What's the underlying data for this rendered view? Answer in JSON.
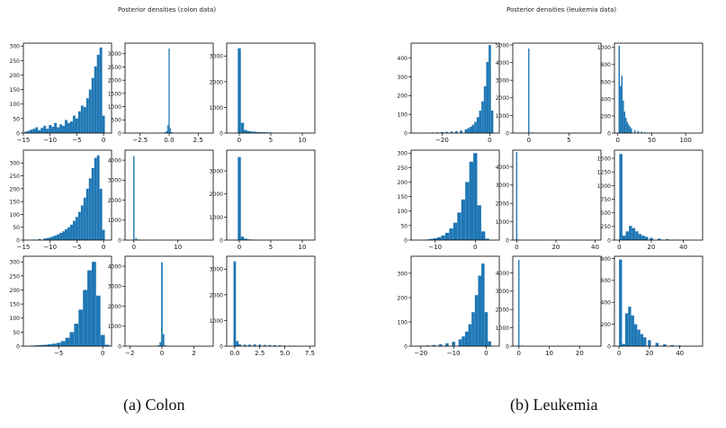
{
  "figures": [
    {
      "title": "Posterior densities (colon data)",
      "caption": "(a)  Colon"
    },
    {
      "title": "Posterior densities (leukemia data)",
      "caption": "(b)  Leukemia"
    }
  ],
  "colors": {
    "bar": "#1f77b4",
    "axis": "#000000",
    "text": "#111111"
  },
  "chart_data": [
    {
      "type": "bar",
      "figure": 0,
      "row": 0,
      "col": 0,
      "xlim": [
        -15,
        1.5
      ],
      "ylim": [
        0,
        310
      ],
      "xticks": [
        -15,
        -10,
        -5,
        0
      ],
      "xtick_labels": [
        "−15",
        "−10",
        "−5",
        "0"
      ],
      "yticks": [
        0,
        50,
        100,
        150,
        200,
        250,
        300
      ],
      "ytick_labels": [
        "0",
        "50",
        "100",
        "150",
        "200",
        "250",
        "300"
      ],
      "x": [
        -14.5,
        -14,
        -13.5,
        -13,
        -12.5,
        -12,
        -11.5,
        -11,
        -10.5,
        -10,
        -9.5,
        -9,
        -8.5,
        -8,
        -7.5,
        -7,
        -6.5,
        -6,
        -5.5,
        -5,
        -4.5,
        -4,
        -3.5,
        -3,
        -2.5,
        -2,
        -1.5,
        -1,
        -0.5,
        0
      ],
      "values": [
        5,
        8,
        12,
        15,
        20,
        10,
        18,
        25,
        15,
        28,
        22,
        35,
        20,
        30,
        25,
        45,
        35,
        40,
        60,
        50,
        75,
        95,
        90,
        120,
        150,
        190,
        230,
        270,
        295,
        60
      ]
    },
    {
      "type": "bar",
      "figure": 0,
      "row": 0,
      "col": 1,
      "xlim": [
        -3.8,
        3.8
      ],
      "ylim": [
        0,
        3400
      ],
      "xticks": [
        -2.5,
        0,
        2.5
      ],
      "xtick_labels": [
        "−2.5",
        "0.0",
        "2.5"
      ],
      "yticks": [
        0,
        500,
        1000,
        1500,
        2000,
        2500,
        3000
      ],
      "ytick_labels": [
        "0",
        "500",
        "1000",
        "1500",
        "2000",
        "2500",
        "3000"
      ],
      "x": [
        -0.4,
        -0.3,
        -0.2,
        -0.1,
        0,
        0.1,
        0.2,
        0.3
      ],
      "values": [
        20,
        40,
        80,
        300,
        3200,
        180,
        40,
        20
      ]
    },
    {
      "type": "bar",
      "figure": 0,
      "row": 0,
      "col": 2,
      "xlim": [
        -2,
        12
      ],
      "ylim": [
        0,
        3500
      ],
      "xticks": [
        0,
        5,
        10
      ],
      "xtick_labels": [
        "0",
        "5",
        "10"
      ],
      "yticks": [
        0,
        1000,
        2000,
        3000
      ],
      "ytick_labels": [
        "0",
        "1000",
        "2000",
        "3000"
      ],
      "x": [
        0,
        0.5,
        1,
        1.5,
        2,
        2.5,
        3,
        3.5,
        4,
        4.5,
        5,
        6,
        7
      ],
      "values": [
        3300,
        400,
        120,
        80,
        60,
        50,
        40,
        35,
        30,
        25,
        20,
        15,
        10
      ]
    },
    {
      "type": "bar",
      "figure": 0,
      "row": 1,
      "col": 0,
      "xlim": [
        -15,
        1.5
      ],
      "ylim": [
        0,
        350
      ],
      "xticks": [
        -15,
        -10,
        -5,
        0
      ],
      "xtick_labels": [
        "−15",
        "−10",
        "−5",
        "0"
      ],
      "yticks": [
        0,
        50,
        100,
        150,
        200,
        250,
        300
      ],
      "ytick_labels": [
        "0",
        "50",
        "100",
        "150",
        "200",
        "250",
        "300"
      ],
      "x": [
        -13,
        -12,
        -11,
        -10.5,
        -10,
        -9.5,
        -9,
        -8.5,
        -8,
        -7.5,
        -7,
        -6.5,
        -6,
        -5.5,
        -5,
        -4.5,
        -4,
        -3.5,
        -3,
        -2.5,
        -2,
        -1.5,
        -1,
        -0.5,
        0
      ],
      "values": [
        2,
        4,
        6,
        8,
        10,
        14,
        18,
        22,
        28,
        34,
        42,
        50,
        60,
        75,
        90,
        110,
        135,
        165,
        200,
        240,
        280,
        320,
        330,
        200,
        40
      ]
    },
    {
      "type": "bar",
      "figure": 0,
      "row": 1,
      "col": 1,
      "xlim": [
        -2,
        18
      ],
      "ylim": [
        0,
        4500
      ],
      "xticks": [
        0,
        10
      ],
      "xtick_labels": [
        "0",
        "10"
      ],
      "yticks": [
        0,
        1000,
        2000,
        3000,
        4000
      ],
      "ytick_labels": [
        "0",
        "1000",
        "2000",
        "3000",
        "4000"
      ],
      "x": [
        0,
        0.5,
        1
      ],
      "values": [
        4200,
        100,
        30
      ]
    },
    {
      "type": "bar",
      "figure": 0,
      "row": 1,
      "col": 2,
      "xlim": [
        -2,
        12
      ],
      "ylim": [
        0,
        3900
      ],
      "xticks": [
        0,
        5,
        10
      ],
      "xtick_labels": [
        "0",
        "5",
        "10"
      ],
      "yticks": [
        0,
        1000,
        2000,
        3000
      ],
      "ytick_labels": [
        "0",
        "1000",
        "2000",
        "3000"
      ],
      "x": [
        0,
        0.5,
        1,
        1.5,
        2,
        2.5
      ],
      "values": [
        3600,
        150,
        60,
        30,
        20,
        10
      ]
    },
    {
      "type": "bar",
      "figure": 0,
      "row": 2,
      "col": 0,
      "xlim": [
        -9,
        1
      ],
      "ylim": [
        0,
        320
      ],
      "xticks": [
        -5,
        0
      ],
      "xtick_labels": [
        "−5",
        "0"
      ],
      "yticks": [
        0,
        50,
        100,
        150,
        200,
        250,
        300
      ],
      "ytick_labels": [
        "0",
        "50",
        "100",
        "150",
        "200",
        "250",
        "300"
      ],
      "x": [
        -8,
        -7.5,
        -7,
        -6.5,
        -6,
        -5.5,
        -5,
        -4.5,
        -4,
        -3.5,
        -3,
        -2.5,
        -2,
        -1.5,
        -1,
        -0.5,
        0,
        0.5
      ],
      "values": [
        2,
        3,
        4,
        5,
        7,
        9,
        12,
        18,
        30,
        50,
        80,
        130,
        200,
        270,
        300,
        180,
        40,
        5
      ]
    },
    {
      "type": "bar",
      "figure": 0,
      "row": 2,
      "col": 1,
      "xlim": [
        -2.3,
        3.2
      ],
      "ylim": [
        0,
        4500
      ],
      "xticks": [
        -2,
        0,
        2
      ],
      "xtick_labels": [
        "−2",
        "0",
        "2"
      ],
      "yticks": [
        0,
        1000,
        2000,
        3000,
        4000
      ],
      "ytick_labels": [
        "0",
        "1000",
        "2000",
        "3000",
        "4000"
      ],
      "x": [
        -0.2,
        -0.1,
        0,
        0.1,
        0.2
      ],
      "values": [
        40,
        200,
        4200,
        600,
        40
      ]
    },
    {
      "type": "bar",
      "figure": 0,
      "row": 2,
      "col": 2,
      "xlim": [
        -0.8,
        8
      ],
      "ylim": [
        0,
        3500
      ],
      "xticks": [
        0,
        2.5,
        5,
        7.5
      ],
      "xtick_labels": [
        "0.0",
        "2.5",
        "5.0",
        "7.5"
      ],
      "yticks": [
        0,
        1000,
        2000,
        3000
      ],
      "ytick_labels": [
        "0",
        "1000",
        "2000",
        "3000"
      ],
      "x": [
        0,
        0.25,
        0.5,
        1,
        1.5,
        2,
        2.5,
        3,
        3.5,
        4,
        4.5,
        5,
        5.5,
        6
      ],
      "values": [
        3300,
        200,
        80,
        60,
        60,
        70,
        60,
        50,
        45,
        40,
        30,
        20,
        15,
        10
      ]
    },
    {
      "type": "bar",
      "figure": 1,
      "row": 0,
      "col": 0,
      "xlim": [
        -33,
        4
      ],
      "ylim": [
        0,
        480
      ],
      "xticks": [
        -20,
        0
      ],
      "xtick_labels": [
        "−20",
        "0"
      ],
      "yticks": [
        0,
        100,
        200,
        300,
        400
      ],
      "ytick_labels": [
        "0",
        "100",
        "200",
        "300",
        "400"
      ],
      "x": [
        -28,
        -26,
        -24,
        -22,
        -20,
        -18,
        -16,
        -14,
        -12,
        -10,
        -9,
        -8,
        -7,
        -6,
        -5,
        -4,
        -3,
        -2,
        -1,
        0,
        1
      ],
      "values": [
        1,
        2,
        3,
        4,
        5,
        6,
        8,
        10,
        14,
        20,
        26,
        34,
        45,
        60,
        85,
        120,
        170,
        250,
        380,
        470,
        120
      ]
    },
    {
      "type": "bar",
      "figure": 1,
      "row": 0,
      "col": 1,
      "xlim": [
        -2,
        9
      ],
      "ylim": [
        0,
        5100
      ],
      "xticks": [
        0,
        5
      ],
      "xtick_labels": [
        "0",
        "5"
      ],
      "yticks": [
        0,
        1000,
        2000,
        3000,
        4000,
        5000
      ],
      "ytick_labels": [
        "0",
        "1000",
        "2000",
        "3000",
        "4000",
        "5000"
      ],
      "x": [
        0,
        0.5
      ],
      "values": [
        4800,
        40
      ]
    },
    {
      "type": "bar",
      "figure": 1,
      "row": 0,
      "col": 2,
      "xlim": [
        -5,
        125
      ],
      "ylim": [
        0,
        1050
      ],
      "xticks": [
        0,
        50,
        100
      ],
      "xtick_labels": [
        "0",
        "50",
        "100"
      ],
      "yticks": [
        0,
        200,
        400,
        600,
        800,
        1000
      ],
      "ytick_labels": [
        "0",
        "200",
        "400",
        "600",
        "800",
        "1000"
      ],
      "x": [
        2,
        4,
        6,
        8,
        10,
        12,
        14,
        16,
        18,
        20,
        25,
        30,
        35,
        40,
        50,
        60
      ],
      "values": [
        1020,
        550,
        670,
        380,
        250,
        180,
        130,
        100,
        75,
        55,
        35,
        25,
        15,
        10,
        5,
        2
      ]
    },
    {
      "type": "bar",
      "figure": 1,
      "row": 1,
      "col": 0,
      "xlim": [
        -16,
        6
      ],
      "ylim": [
        0,
        310
      ],
      "xticks": [
        -10,
        0
      ],
      "xtick_labels": [
        "−10",
        "0"
      ],
      "yticks": [
        0,
        50,
        100,
        150,
        200,
        250,
        300
      ],
      "ytick_labels": [
        "0",
        "50",
        "100",
        "150",
        "200",
        "250",
        "300"
      ],
      "x": [
        -12,
        -11,
        -10,
        -9,
        -8,
        -7,
        -6,
        -5,
        -4,
        -3,
        -2,
        -1,
        0,
        1,
        2,
        3
      ],
      "values": [
        2,
        4,
        6,
        10,
        16,
        25,
        40,
        60,
        95,
        140,
        200,
        270,
        300,
        120,
        30,
        5
      ]
    },
    {
      "type": "bar",
      "figure": 1,
      "row": 1,
      "col": 1,
      "xlim": [
        -2,
        43
      ],
      "ylim": [
        0,
        4900
      ],
      "xticks": [
        0,
        20,
        40
      ],
      "xtick_labels": [
        "0",
        "20",
        "40"
      ],
      "yticks": [
        0,
        1000,
        2000,
        3000,
        4000
      ],
      "ytick_labels": [
        "0",
        "1000",
        "2000",
        "3000",
        "4000"
      ],
      "x": [
        0,
        1
      ],
      "values": [
        4800,
        30
      ]
    },
    {
      "type": "bar",
      "figure": 1,
      "row": 1,
      "col": 2,
      "xlim": [
        -3,
        52
      ],
      "ylim": [
        0,
        1650
      ],
      "xticks": [
        0,
        20,
        40
      ],
      "xtick_labels": [
        "0",
        "20",
        "40"
      ],
      "yticks": [
        0,
        250,
        500,
        750,
        1000,
        1250,
        1500
      ],
      "ytick_labels": [
        "0",
        "250",
        "500",
        "750",
        "1000",
        "1250",
        "1500"
      ],
      "x": [
        1,
        3,
        5,
        7,
        9,
        11,
        13,
        15,
        17,
        20,
        25,
        30,
        35,
        40
      ],
      "values": [
        1580,
        80,
        160,
        260,
        220,
        160,
        110,
        80,
        60,
        40,
        25,
        15,
        8,
        4
      ]
    },
    {
      "type": "bar",
      "figure": 1,
      "row": 2,
      "col": 0,
      "xlim": [
        -23,
        4
      ],
      "ylim": [
        0,
        370
      ],
      "xticks": [
        -20,
        -10,
        0
      ],
      "xtick_labels": [
        "−20",
        "−10",
        "0"
      ],
      "yticks": [
        0,
        100,
        200,
        300
      ],
      "ytick_labels": [
        "0",
        "100",
        "200",
        "300"
      ],
      "x": [
        -20,
        -18,
        -16,
        -14,
        -12,
        -10,
        -8,
        -7,
        -6,
        -5,
        -4,
        -3,
        -2,
        -1,
        0,
        1
      ],
      "values": [
        2,
        3,
        5,
        8,
        12,
        18,
        28,
        40,
        60,
        90,
        140,
        210,
        290,
        340,
        140,
        20
      ]
    },
    {
      "type": "bar",
      "figure": 1,
      "row": 2,
      "col": 1,
      "xlim": [
        -2,
        27
      ],
      "ylim": [
        0,
        4900
      ],
      "xticks": [
        0,
        10,
        20
      ],
      "xtick_labels": [
        "0",
        "10",
        "20"
      ],
      "yticks": [
        0,
        1000,
        2000,
        3000,
        4000
      ],
      "ytick_labels": [
        "0",
        "1000",
        "2000",
        "3000",
        "4000"
      ],
      "x": [
        0,
        1
      ],
      "values": [
        4700,
        30
      ]
    },
    {
      "type": "bar",
      "figure": 1,
      "row": 2,
      "col": 2,
      "xlim": [
        -3,
        55
      ],
      "ylim": [
        0,
        820
      ],
      "xticks": [
        0,
        20,
        40
      ],
      "xtick_labels": [
        "0",
        "20",
        "40"
      ],
      "yticks": [
        0,
        200,
        400,
        600,
        800
      ],
      "ytick_labels": [
        "0",
        "200",
        "400",
        "600",
        "800"
      ],
      "x": [
        1,
        3,
        5,
        7,
        9,
        11,
        13,
        15,
        17,
        20,
        25,
        30,
        35,
        40,
        45
      ],
      "values": [
        790,
        20,
        300,
        360,
        280,
        200,
        150,
        110,
        80,
        55,
        30,
        18,
        10,
        6,
        3
      ]
    }
  ]
}
